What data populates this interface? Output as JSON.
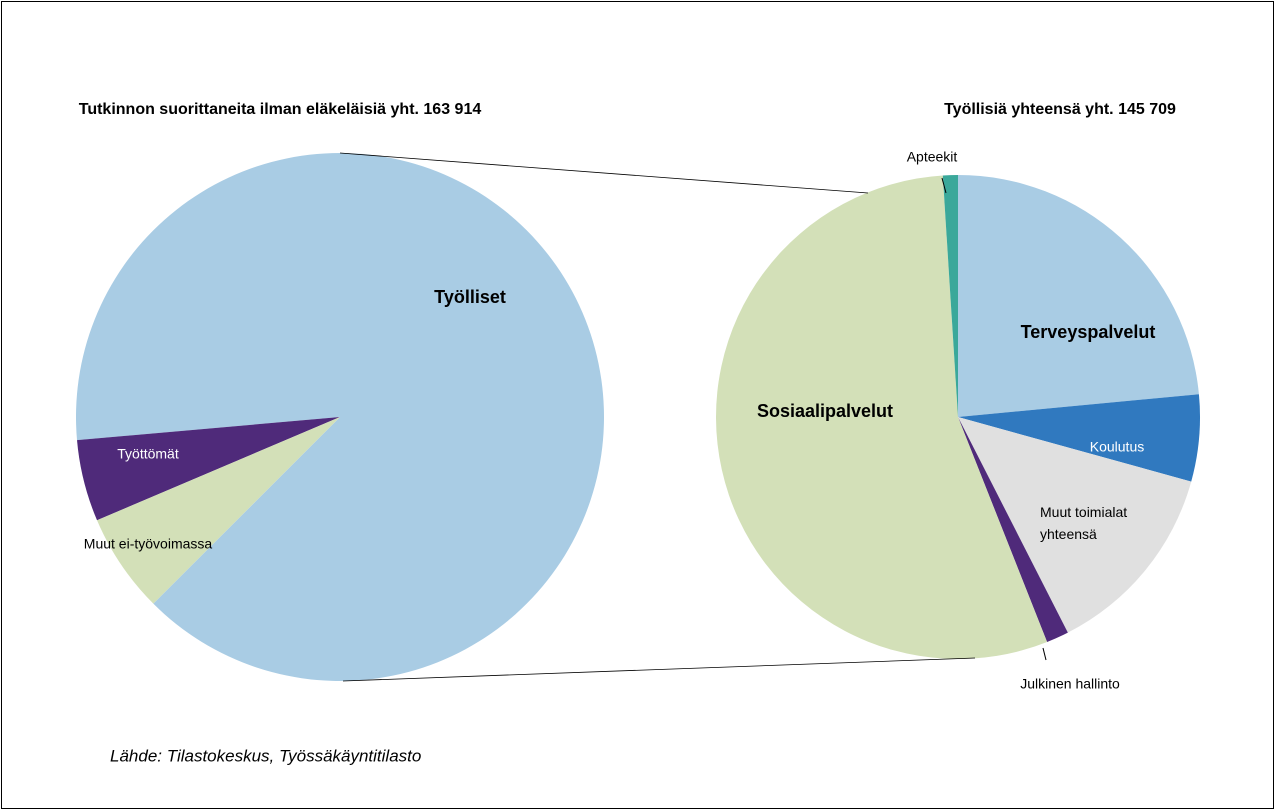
{
  "chart_data": [
    {
      "type": "pie",
      "title": "Tutkinnon suorittaneita ilman eläkeläisiä yht. 163 914",
      "categories": [
        "Työlliset",
        "Työttömät",
        "Muut ei-työvoimassa"
      ],
      "values": [
        145709,
        8200,
        10005
      ],
      "colors": [
        "#a9cce4",
        "#4f2a7a",
        "#d3e0b8"
      ]
    },
    {
      "type": "pie",
      "title": "Työllisiä yhteensä yht. 145 709",
      "categories": [
        "Terveyspalvelut",
        "Koulutus",
        "Muut toimialat yhteensä",
        "Julkinen hallinto",
        "Sosiaalipalvelut",
        "Apteekit"
      ],
      "values": [
        23.5,
        5.8,
        13.2,
        1.5,
        55,
        1.0
      ],
      "colors": [
        "#a9cce4",
        "#3079bf",
        "#e0e0e0",
        "#4f2a7a",
        "#d3e0b8",
        "#3aa89a"
      ]
    }
  ],
  "source": "Lähde: Tilastokeskus, Työssäkäyntitilasto"
}
